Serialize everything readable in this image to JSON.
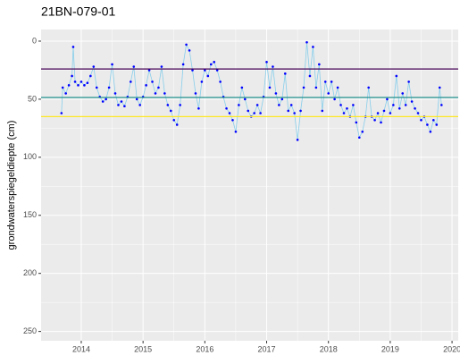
{
  "chart_data": {
    "type": "line",
    "title": "21BN-079-01",
    "ylabel": "grondwaterspiegeldiepte (cm)",
    "y_reversed": true,
    "xlim": [
      2013.35,
      2020.1
    ],
    "xticks": [
      2014,
      2015,
      2016,
      2017,
      2018,
      2019,
      2020
    ],
    "ylim": [
      -10,
      258
    ],
    "yticks": [
      0,
      50,
      100,
      150,
      200,
      250
    ],
    "grid": true,
    "hlines": [
      {
        "value": 24,
        "color": "#440154"
      },
      {
        "value": 48.5,
        "color": "#21908c"
      },
      {
        "value": 65,
        "color": "#fde725"
      }
    ],
    "x": [
      2013.68,
      2013.7,
      2013.75,
      2013.8,
      2013.85,
      2013.87,
      2013.9,
      2013.95,
      2014.0,
      2014.05,
      2014.1,
      2014.15,
      2014.2,
      2014.25,
      2014.3,
      2014.35,
      2014.4,
      2014.45,
      2014.5,
      2014.55,
      2014.6,
      2014.65,
      2014.7,
      2014.75,
      2014.8,
      2014.85,
      2014.9,
      2014.95,
      2015.0,
      2015.05,
      2015.1,
      2015.15,
      2015.2,
      2015.25,
      2015.3,
      2015.35,
      2015.4,
      2015.45,
      2015.5,
      2015.55,
      2015.6,
      2015.65,
      2015.7,
      2015.75,
      2015.8,
      2015.85,
      2015.9,
      2015.95,
      2016.0,
      2016.05,
      2016.1,
      2016.15,
      2016.2,
      2016.25,
      2016.3,
      2016.35,
      2016.4,
      2016.45,
      2016.5,
      2016.55,
      2016.6,
      2016.65,
      2016.7,
      2016.75,
      2016.8,
      2016.85,
      2016.9,
      2016.95,
      2017.0,
      2017.05,
      2017.1,
      2017.15,
      2017.2,
      2017.25,
      2017.3,
      2017.35,
      2017.4,
      2017.45,
      2017.5,
      2017.55,
      2017.6,
      2017.65,
      2017.7,
      2017.75,
      2017.8,
      2017.85,
      2017.9,
      2017.95,
      2018.0,
      2018.05,
      2018.1,
      2018.15,
      2018.2,
      2018.25,
      2018.3,
      2018.35,
      2018.4,
      2018.45,
      2018.5,
      2018.55,
      2018.6,
      2018.65,
      2018.7,
      2018.75,
      2018.8,
      2018.85,
      2018.9,
      2018.95,
      2019.0,
      2019.05,
      2019.1,
      2019.15,
      2019.2,
      2019.25,
      2019.3,
      2019.35,
      2019.4,
      2019.45,
      2019.5,
      2019.55,
      2019.6,
      2019.65,
      2019.7,
      2019.75,
      2019.8,
      2019.83
    ],
    "series": [
      {
        "color": "#0000ff",
        "line_color": "#87ceeb",
        "values": [
          62,
          40,
          45,
          38,
          30,
          5,
          35,
          38,
          35,
          38,
          36,
          30,
          22,
          40,
          48,
          52,
          50,
          40,
          20,
          45,
          55,
          52,
          56,
          48,
          35,
          22,
          50,
          55,
          48,
          38,
          25,
          35,
          45,
          40,
          22,
          45,
          55,
          60,
          68,
          72,
          55,
          20,
          3,
          8,
          25,
          45,
          58,
          35,
          25,
          30,
          20,
          18,
          25,
          35,
          48,
          58,
          62,
          68,
          78,
          55,
          40,
          50,
          60,
          65,
          62,
          55,
          62,
          48,
          18,
          40,
          22,
          45,
          55,
          50,
          28,
          60,
          55,
          62,
          85,
          60,
          40,
          1,
          30,
          5,
          40,
          20,
          60,
          35,
          45,
          35,
          50,
          40,
          55,
          62,
          58,
          65,
          55,
          70,
          83,
          78,
          65,
          40,
          65,
          68,
          62,
          70,
          60,
          50,
          62,
          55,
          30,
          58,
          45,
          55,
          35,
          52,
          58,
          62,
          68,
          65,
          72,
          78,
          68,
          72,
          40,
          55
        ]
      }
    ]
  }
}
